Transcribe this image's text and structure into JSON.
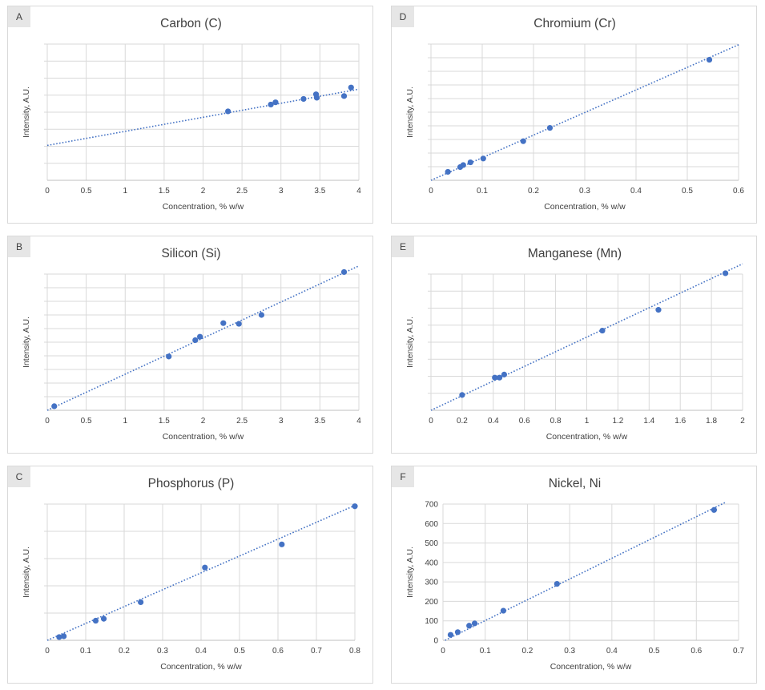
{
  "chart_data": [
    {
      "panel": "A",
      "type": "scatter",
      "title": "Carbon (C)",
      "xlabel": "Concentration, % w/w",
      "ylabel": "Intensity, A.U.",
      "xlim": [
        0,
        4
      ],
      "xticks": [
        0,
        0.5,
        1,
        1.5,
        2,
        2.5,
        3,
        3.5,
        4
      ],
      "xtick_labels": [
        "0",
        "0.5",
        "1",
        "1.5",
        "2",
        "2.5",
        "3",
        "3.5",
        "4"
      ],
      "ylim": [
        0,
        8
      ],
      "ygrid": [
        1,
        2,
        3,
        4,
        5,
        6,
        7,
        8
      ],
      "ytick_labels": [],
      "grid": true,
      "trendline": "linear-dotted",
      "x": [
        2.32,
        2.87,
        2.93,
        3.29,
        3.45,
        3.46,
        3.81,
        3.9
      ],
      "y": [
        4.05,
        4.45,
        4.58,
        4.78,
        5.05,
        4.85,
        4.95,
        5.45
      ],
      "trend": [
        [
          0,
          2.05
        ],
        [
          4,
          5.35
        ]
      ]
    },
    {
      "panel": "D",
      "type": "scatter",
      "title": "Chromium (Cr)",
      "xlabel": "Concentration, % w/w",
      "ylabel": "Intensity, A.U.",
      "xlim": [
        0,
        0.6
      ],
      "xticks": [
        0,
        0.1,
        0.2,
        0.3,
        0.4,
        0.5,
        0.6
      ],
      "xtick_labels": [
        "0",
        "0.1",
        "0.2",
        "0.3",
        "0.4",
        "0.5",
        "0.6"
      ],
      "ylim": [
        0,
        10
      ],
      "ygrid": [
        1,
        2,
        3,
        4,
        5,
        6,
        7,
        8,
        9,
        10
      ],
      "ytick_labels": [],
      "grid": true,
      "trendline": "linear-dotted",
      "x": [
        0.033,
        0.057,
        0.063,
        0.077,
        0.102,
        0.18,
        0.232,
        0.543
      ],
      "y": [
        0.62,
        0.97,
        1.12,
        1.32,
        1.6,
        2.87,
        3.85,
        8.85
      ],
      "trend": [
        [
          0,
          0.0
        ],
        [
          0.6,
          9.95
        ]
      ]
    },
    {
      "panel": "B",
      "type": "scatter",
      "title": "Silicon (Si)",
      "xlabel": "Concentration, % w/w",
      "ylabel": "Intensity, A.U.",
      "xlim": [
        0,
        4
      ],
      "xticks": [
        0,
        0.5,
        1,
        1.5,
        2,
        2.5,
        3,
        3.5,
        4
      ],
      "xtick_labels": [
        "0",
        "0.5",
        "1",
        "1.5",
        "2",
        "2.5",
        "3",
        "3.5",
        "4"
      ],
      "ylim": [
        0,
        10
      ],
      "ygrid": [
        1,
        2,
        3,
        4,
        5,
        6,
        7,
        8,
        9,
        10
      ],
      "ytick_labels": [],
      "grid": true,
      "trendline": "linear-dotted",
      "x": [
        0.09,
        1.56,
        1.9,
        1.96,
        2.26,
        2.46,
        2.75,
        3.81
      ],
      "y": [
        0.3,
        3.95,
        5.15,
        5.4,
        6.4,
        6.35,
        7.0,
        10.15
      ],
      "trend": [
        [
          0,
          0.0
        ],
        [
          4,
          10.6
        ]
      ]
    },
    {
      "panel": "E",
      "type": "scatter",
      "title": "Manganese (Mn)",
      "xlabel": "Concentration, % w/w",
      "ylabel": "Intensity, A.U.",
      "xlim": [
        0,
        2
      ],
      "xticks": [
        0,
        0.2,
        0.4,
        0.6,
        0.8,
        1,
        1.2,
        1.4,
        1.6,
        1.8,
        2
      ],
      "xtick_labels": [
        "0",
        "0.2",
        "0.4",
        "0.6",
        "0.8",
        "1",
        "1.2",
        "1.4",
        "1.6",
        "1.8",
        "2"
      ],
      "ylim": [
        0,
        8
      ],
      "ygrid": [
        1,
        2,
        3,
        4,
        5,
        6,
        7,
        8
      ],
      "ytick_labels": [],
      "grid": true,
      "trendline": "linear-dotted",
      "x": [
        0.2,
        0.41,
        0.44,
        0.47,
        1.1,
        1.46,
        1.89
      ],
      "y": [
        0.9,
        1.92,
        1.92,
        2.1,
        4.68,
        5.9,
        8.05
      ],
      "trend": [
        [
          0,
          0.0
        ],
        [
          2,
          8.6
        ]
      ]
    },
    {
      "panel": "C",
      "type": "scatter",
      "title": "Phosphorus (P)",
      "xlabel": "Concentration, % w/w",
      "ylabel": "Intensity, A.U.",
      "xlim": [
        0,
        0.8
      ],
      "xticks": [
        0,
        0.1,
        0.2,
        0.3,
        0.4,
        0.5,
        0.6,
        0.7,
        0.8
      ],
      "xtick_labels": [
        "0",
        "0.1",
        "0.2",
        "0.3",
        "0.4",
        "0.5",
        "0.6",
        "0.7",
        "0.8"
      ],
      "ylim": [
        0,
        5
      ],
      "ygrid": [
        1,
        2,
        3,
        4,
        5
      ],
      "ytick_labels": [],
      "grid": true,
      "trendline": "linear-dotted",
      "x": [
        0.031,
        0.043,
        0.126,
        0.147,
        0.243,
        0.41,
        0.61,
        0.8
      ],
      "y": [
        0.12,
        0.15,
        0.72,
        0.79,
        1.4,
        2.67,
        3.52,
        4.92
      ],
      "trend": [
        [
          0,
          0.0
        ],
        [
          0.8,
          4.95
        ]
      ]
    },
    {
      "panel": "F",
      "type": "scatter",
      "title": "Nickel, Ni",
      "xlabel": "Concentration, % w/w",
      "ylabel": "Intensity, A.U.",
      "xlim": [
        0,
        0.7
      ],
      "xticks": [
        0,
        0.1,
        0.2,
        0.3,
        0.4,
        0.5,
        0.6,
        0.7
      ],
      "xtick_labels": [
        "0",
        "0.1",
        "0.2",
        "0.3",
        "0.4",
        "0.5",
        "0.6",
        "0.7"
      ],
      "ylim": [
        0,
        700
      ],
      "ygrid": [
        0,
        100,
        200,
        300,
        400,
        500,
        600,
        700
      ],
      "ytick_labels": [
        "0",
        "100",
        "200",
        "300",
        "400",
        "500",
        "600",
        "700"
      ],
      "grid": true,
      "trendline": "linear-dotted",
      "x": [
        0.018,
        0.035,
        0.062,
        0.075,
        0.143,
        0.27,
        0.642
      ],
      "y": [
        28,
        42,
        75,
        87,
        152,
        290,
        670
      ],
      "trend": [
        [
          0.005,
          0
        ],
        [
          0.67,
          710
        ]
      ]
    }
  ]
}
